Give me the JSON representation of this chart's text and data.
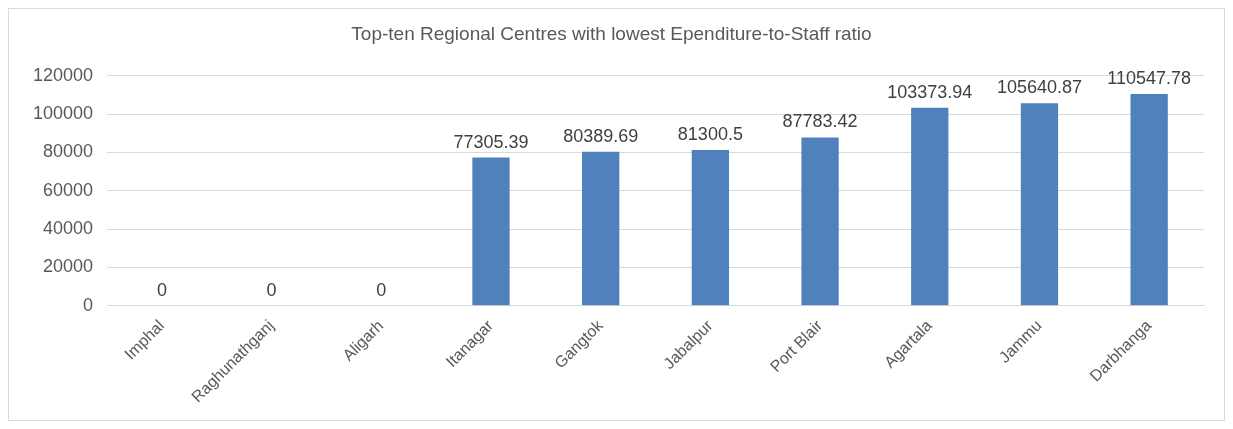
{
  "chart_data": {
    "type": "bar",
    "title": "Top-ten Regional Centres with lowest Ependiture-to-Staff ratio",
    "categories": [
      "Imphal",
      "Raghunathganj",
      "Aligarh",
      "Itanagar",
      "Gangtok",
      "Jabalpur",
      "Port Blair",
      "Agartala",
      "Jammu",
      "Darbhanga"
    ],
    "values": [
      0,
      0,
      0,
      77305.39,
      80389.69,
      81300.5,
      87783.42,
      103373.94,
      105640.87,
      110547.78
    ],
    "color": "#4f81bd",
    "ylim": [
      0,
      120000
    ],
    "yticks": [
      0,
      20000,
      40000,
      60000,
      80000,
      100000,
      120000
    ],
    "grid": "y",
    "data_labels": true
  }
}
